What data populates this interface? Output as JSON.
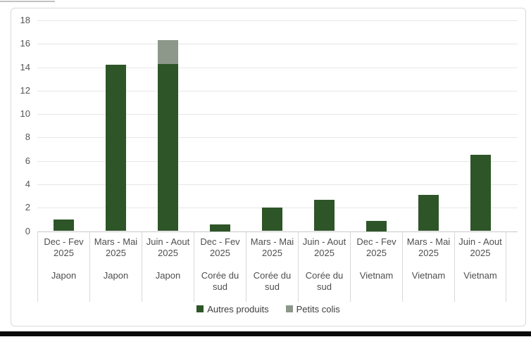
{
  "chart_data": {
    "type": "bar",
    "stacked": true,
    "title": "",
    "categories": [
      {
        "period": "Dec - Fev 2025",
        "group": "Japon"
      },
      {
        "period": "Mars - Mai 2025",
        "group": "Japon"
      },
      {
        "period": "Juin - Aout 2025",
        "group": "Japon"
      },
      {
        "period": "Dec - Fev 2025",
        "group": "Corée du sud"
      },
      {
        "period": "Mars - Mai 2025",
        "group": "Corée du sud"
      },
      {
        "period": "Juin - Aout 2025",
        "group": "Corée du sud"
      },
      {
        "period": "Dec - Fev 2025",
        "group": "Vietnam"
      },
      {
        "period": "Mars - Mai 2025",
        "group": "Vietnam"
      },
      {
        "period": "Juin - Aout 2025",
        "group": "Vietnam"
      }
    ],
    "series": [
      {
        "name": "Autres produits",
        "color": "#2e5527",
        "values": [
          1.0,
          14.2,
          14.3,
          0.6,
          2.0,
          2.7,
          0.9,
          3.1,
          6.5
        ]
      },
      {
        "name": "Petits colis",
        "color": "#8d978a",
        "values": [
          0,
          0,
          2.0,
          0,
          0,
          0,
          0,
          0,
          0
        ]
      }
    ],
    "y_axis": {
      "min": 0,
      "max": 18,
      "step": 2,
      "ticks": [
        0,
        2,
        4,
        6,
        8,
        10,
        12,
        14,
        16,
        18
      ]
    },
    "grid": true,
    "legend_position": "bottom"
  }
}
